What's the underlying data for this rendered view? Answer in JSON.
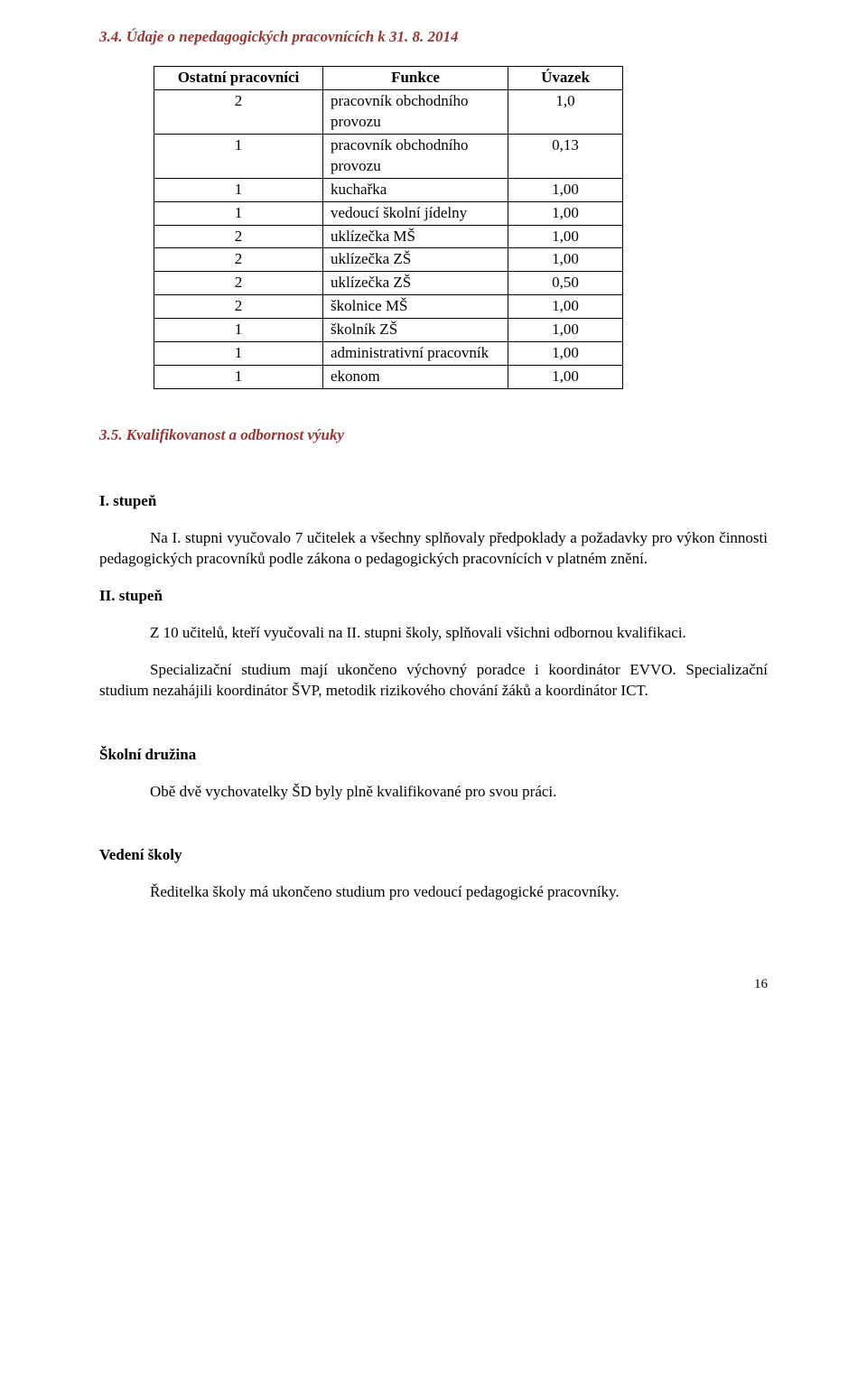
{
  "heading_34": "3.4. Údaje o nepedagogických pracovnících k 31. 8. 2014",
  "table": {
    "headers": [
      "Ostatní pracovníci",
      "Funkce",
      "Úvazek"
    ],
    "rows": [
      [
        "2",
        "pracovník obchodního provozu",
        "1,0"
      ],
      [
        "1",
        "pracovník obchodního provozu",
        "0,13"
      ],
      [
        "1",
        "kuchařka",
        "1,00"
      ],
      [
        "1",
        "vedoucí školní jídelny",
        "1,00"
      ],
      [
        "2",
        "uklízečka MŠ",
        "1,00"
      ],
      [
        "2",
        "uklízečka ZŠ",
        "1,00"
      ],
      [
        "2",
        "uklízečka ZŠ",
        "0,50"
      ],
      [
        "2",
        "školnice MŠ",
        "1,00"
      ],
      [
        "1",
        "školník ZŠ",
        "1,00"
      ],
      [
        "1",
        "administrativní pracovník",
        "1,00"
      ],
      [
        "1",
        "ekonom",
        "1,00"
      ]
    ]
  },
  "heading_35": "3.5. Kvalifikovanost a odbornost výuky",
  "s1": {
    "title": "I. stupeň",
    "p1": "Na I. stupni vyučovalo 7 učitelek a všechny splňovaly předpoklady a požadavky pro výkon činnosti pedagogických pracovníků podle zákona o pedagogických pracovnících v platném znění."
  },
  "s2": {
    "title": "II. stupeň",
    "p1": "Z 10 učitelů, kteří vyučovali na II. stupni školy, splňovali všichni odbornou kvalifikaci.",
    "p2": "Specializační studium mají ukončeno výchovný poradce i koordinátor EVVO. Specializační studium nezahájili koordinátor ŠVP, metodik rizikového chování žáků a koordinátor ICT."
  },
  "s3": {
    "title": "Školní družina",
    "p1": "Obě dvě vychovatelky ŠD byly plně kvalifikované pro svou práci."
  },
  "s4": {
    "title": "Vedení školy",
    "p1": "Ředitelka školy má ukončeno studium pro vedoucí pedagogické pracovníky."
  },
  "pagenum": "16"
}
